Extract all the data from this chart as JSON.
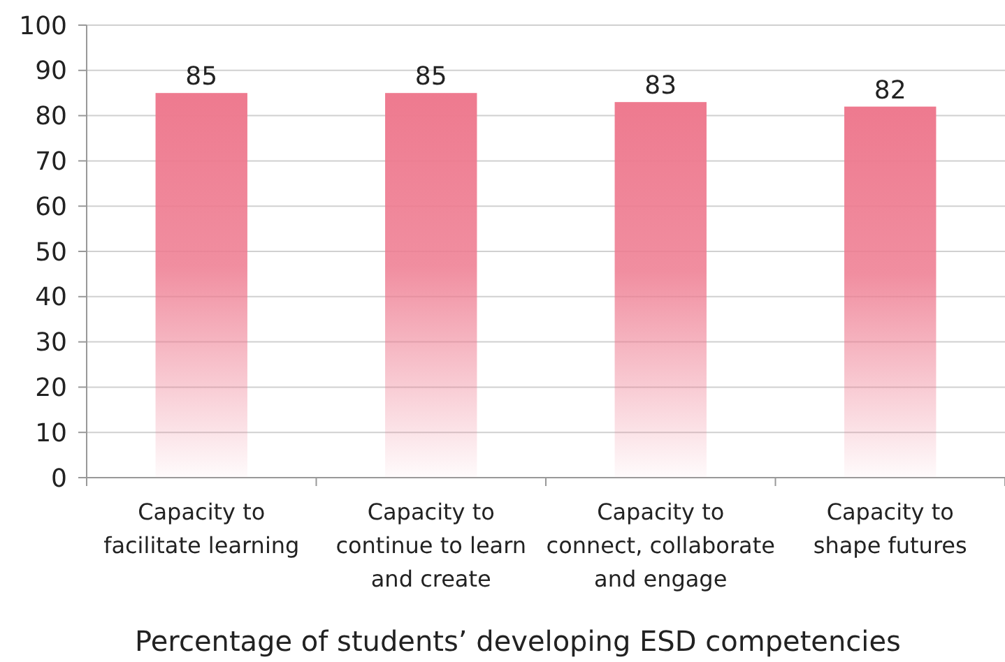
{
  "chart_data": {
    "type": "bar",
    "xlabel": "Percentage of students’ developing ESD competencies",
    "categories": [
      "Capacity to\nfacilitate learning",
      "Capacity to\ncontinue to learn\nand create",
      "Capacity to\nconnect, collaborate\nand engage",
      "Capacity to\nshape futures"
    ],
    "values": [
      85,
      85,
      83,
      82
    ],
    "color": "#ee7a8f",
    "data_labels": true,
    "grid": "y",
    "ylim": [
      0,
      100
    ],
    "yticks": [
      0,
      10,
      20,
      30,
      40,
      50,
      60,
      70,
      80,
      90,
      100
    ]
  }
}
